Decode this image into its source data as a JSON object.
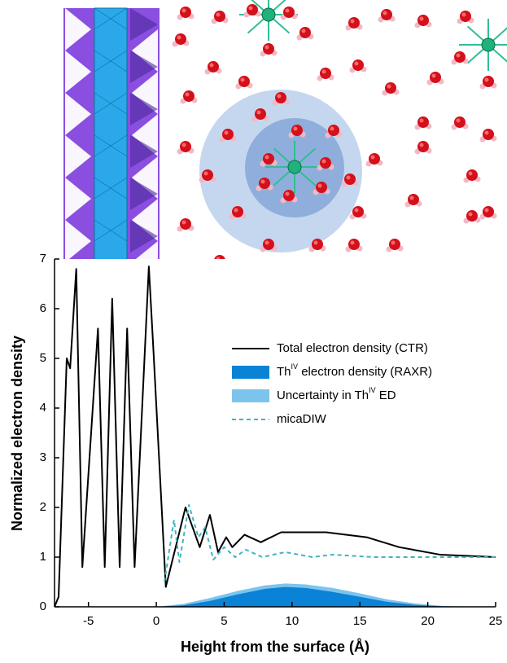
{
  "chart_data": {
    "type": "line",
    "xlabel": "Height from the surface (Å)",
    "ylabel": "Normalized electron density",
    "xlim": [
      -7.5,
      25
    ],
    "ylim": [
      0,
      7
    ],
    "xticks": [
      -5,
      0,
      5,
      10,
      15,
      20,
      25
    ],
    "yticks": [
      0,
      1,
      2,
      3,
      4,
      5,
      6,
      7
    ],
    "legend": "right",
    "series": [
      {
        "name": "Total electron density (CTR)",
        "color": "#000000",
        "style": "line",
        "x": [
          -7.5,
          -7.2,
          -6.9,
          -6.6,
          -6.35,
          -5.9,
          -5.45,
          -4.3,
          -3.8,
          -3.25,
          -2.7,
          -2.15,
          -1.6,
          -0.55,
          -0.2,
          0.7,
          2.15,
          3.2,
          3.95,
          4.55,
          5.15,
          5.6,
          6.5,
          7.7,
          9.2,
          12.5,
          15.5,
          17.9,
          20.9,
          25
        ],
        "values": [
          0,
          0.2,
          2.6,
          5.0,
          4.8,
          6.8,
          0.8,
          5.6,
          0.8,
          6.2,
          0.8,
          5.6,
          0.8,
          6.85,
          5.1,
          0.4,
          2.0,
          1.2,
          1.85,
          1.1,
          1.4,
          1.2,
          1.45,
          1.3,
          1.5,
          1.5,
          1.4,
          1.2,
          1.05,
          1.0
        ]
      },
      {
        "name": "Uncertainty in Th",
        "name_sup": "IV",
        "name_rest": " ED",
        "color": "#7cc4ee",
        "style": "area",
        "x": [
          0,
          2,
          4,
          6,
          8,
          9.5,
          11,
          13,
          15,
          17,
          19,
          21,
          22,
          25
        ],
        "values": [
          0,
          0.06,
          0.18,
          0.32,
          0.43,
          0.47,
          0.45,
          0.38,
          0.27,
          0.15,
          0.07,
          0.02,
          0.01,
          0
        ]
      },
      {
        "name": "Th",
        "name_sup": "IV",
        "name_rest": " electron density (RAXR)",
        "color": "#0a83d6",
        "style": "area",
        "x": [
          0,
          2,
          4,
          6,
          8,
          9.5,
          11,
          13,
          15,
          17,
          19,
          21,
          22,
          25
        ],
        "values": [
          0,
          0.03,
          0.12,
          0.25,
          0.36,
          0.4,
          0.38,
          0.3,
          0.2,
          0.1,
          0.04,
          0.01,
          0,
          0
        ]
      },
      {
        "name": "micaDIW",
        "color": "#3fb5c0",
        "style": "dashed",
        "x": [
          0.6,
          1.3,
          1.7,
          2.4,
          3.1,
          3.6,
          4.2,
          5.0,
          5.8,
          6.6,
          7.8,
          9.5,
          11.5,
          13,
          16,
          25
        ],
        "values": [
          0.5,
          1.75,
          0.9,
          2.05,
          1.4,
          1.6,
          0.95,
          1.2,
          1.0,
          1.15,
          1.0,
          1.1,
          1.0,
          1.05,
          1.0,
          1.0
        ]
      }
    ]
  }
}
